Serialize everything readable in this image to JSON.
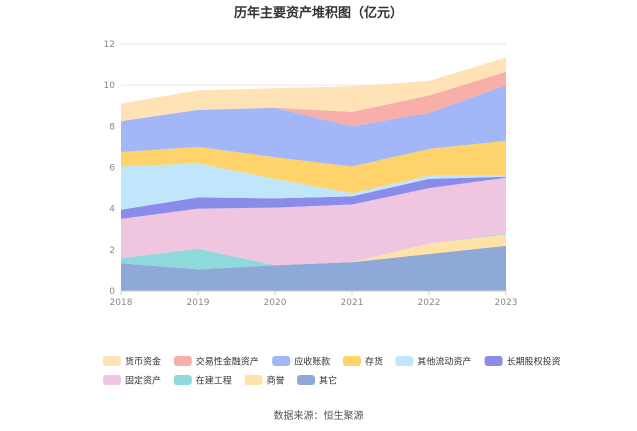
{
  "chart_data": {
    "type": "area",
    "stacked": true,
    "title": "历年主要资产堆积图（亿元）",
    "x": [
      "2018",
      "2019",
      "2020",
      "2021",
      "2022",
      "2023"
    ],
    "ylim": [
      0,
      12
    ],
    "yticks": [
      0,
      2,
      4,
      6,
      8,
      10,
      12
    ],
    "grid": true,
    "legend_position": "bottom",
    "series": [
      {
        "name": "其它",
        "color": "#8EA9D8",
        "values": [
          1.35,
          1.05,
          1.25,
          1.4,
          1.8,
          2.2
        ]
      },
      {
        "name": "商誉",
        "color": "#FFE2A8",
        "values": [
          0.0,
          0.0,
          0.0,
          0.0,
          0.5,
          0.55
        ]
      },
      {
        "name": "在建工程",
        "color": "#8ED9DC",
        "values": [
          0.25,
          1.0,
          0.0,
          0.0,
          0.0,
          0.05
        ]
      },
      {
        "name": "固定资产",
        "color": "#EFC5DF",
        "values": [
          1.9,
          1.95,
          2.8,
          2.8,
          2.7,
          2.7
        ]
      },
      {
        "name": "长期股权投资",
        "color": "#8B8BEA",
        "values": [
          0.45,
          0.55,
          0.45,
          0.4,
          0.45,
          0.05
        ]
      },
      {
        "name": "其他流动资产",
        "color": "#BFE6FA",
        "values": [
          2.1,
          1.65,
          0.95,
          0.15,
          0.15,
          0.05
        ]
      },
      {
        "name": "存货",
        "color": "#FFD36B",
        "values": [
          0.7,
          0.8,
          1.05,
          1.3,
          1.3,
          1.7
        ]
      },
      {
        "name": "应收账款",
        "color": "#A3B6F8",
        "values": [
          1.5,
          1.8,
          2.4,
          1.95,
          1.75,
          2.7
        ]
      },
      {
        "name": "交易性金融资产",
        "color": "#F8AFAA",
        "values": [
          0.0,
          0.0,
          0.0,
          0.7,
          0.85,
          0.65
        ]
      },
      {
        "name": "货币资金",
        "color": "#FFE2B5",
        "values": [
          0.85,
          0.95,
          0.95,
          1.25,
          0.7,
          0.7
        ]
      }
    ],
    "legend_order": [
      "货币资金",
      "交易性金融资产",
      "应收账款",
      "存货",
      "其他流动资产",
      "长期股权投资",
      "固定资产",
      "在建工程",
      "商誉",
      "其它"
    ]
  },
  "source": "数据来源：恒生聚源"
}
